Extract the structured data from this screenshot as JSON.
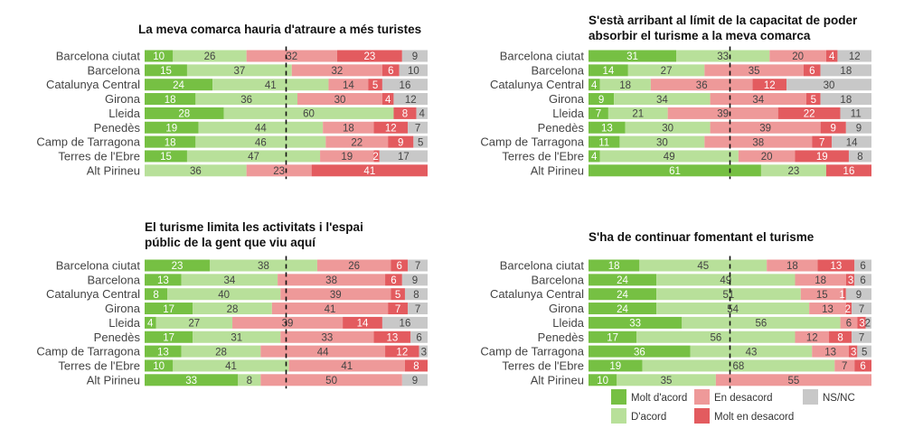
{
  "colors": {
    "molt_acord": "#76c043",
    "acord": "#b8e09a",
    "desacord": "#ee9999",
    "molt_desacord": "#e35b5f",
    "nsnc": "#c8c8c8"
  },
  "legend": {
    "molt_acord": "Molt d'acord",
    "acord": "D'acord",
    "desacord": "En desacord",
    "molt_desacord": "Molt en desacord",
    "nsnc": "NS/NC"
  },
  "chart_data": [
    {
      "type": "stacked-bar",
      "title_lines": [
        "La meva comarca hauria d'atraure a més turistes"
      ],
      "categories": [
        "Barcelona ciutat",
        "Barcelona",
        "Catalunya Central",
        "Girona",
        "Lleida",
        "Penedès",
        "Camp de Tarragona",
        "Terres de l'Ebre",
        "Alt Pirineu"
      ],
      "series": [
        {
          "key": "molt_acord",
          "values": [
            10,
            15,
            24,
            18,
            28,
            19,
            18,
            15,
            0
          ]
        },
        {
          "key": "acord",
          "values": [
            26,
            37,
            41,
            36,
            60,
            44,
            46,
            47,
            36
          ]
        },
        {
          "key": "desacord",
          "values": [
            32,
            32,
            14,
            30,
            0,
            18,
            22,
            19,
            23
          ]
        },
        {
          "key": "molt_desacord",
          "values": [
            23,
            6,
            5,
            4,
            8,
            12,
            9,
            2,
            41
          ]
        },
        {
          "key": "nsnc",
          "values": [
            9,
            10,
            16,
            12,
            4,
            7,
            5,
            17,
            0
          ]
        }
      ],
      "xlim": [
        0,
        100
      ],
      "reference_line": 50
    },
    {
      "type": "stacked-bar",
      "title_lines": [
        "S'està arribant al límit de la capacitat de poder",
        "absorbir el turisme a la meva comarca"
      ],
      "categories": [
        "Barcelona ciutat",
        "Barcelona",
        "Catalunya Central",
        "Girona",
        "Lleida",
        "Penedès",
        "Camp de Tarragona",
        "Terres de l'Ebre",
        "Alt Pirineu"
      ],
      "series": [
        {
          "key": "molt_acord",
          "values": [
            31,
            14,
            4,
            9,
            7,
            13,
            11,
            4,
            61
          ]
        },
        {
          "key": "acord",
          "values": [
            33,
            27,
            18,
            34,
            21,
            30,
            30,
            49,
            23
          ]
        },
        {
          "key": "desacord",
          "values": [
            20,
            35,
            36,
            34,
            39,
            39,
            38,
            20,
            0
          ]
        },
        {
          "key": "molt_desacord",
          "values": [
            4,
            6,
            12,
            5,
            22,
            9,
            7,
            19,
            16
          ]
        },
        {
          "key": "nsnc",
          "values": [
            12,
            18,
            30,
            18,
            11,
            9,
            14,
            8,
            0
          ]
        }
      ],
      "xlim": [
        0,
        100
      ],
      "reference_line": 50
    },
    {
      "type": "stacked-bar",
      "title_lines": [
        "El turisme limita les activitats i l'espai",
        "públic de la gent que viu aquí"
      ],
      "categories": [
        "Barcelona ciutat",
        "Barcelona",
        "Catalunya Central",
        "Girona",
        "Lleida",
        "Penedès",
        "Camp de Tarragona",
        "Terres de l'Ebre",
        "Alt Pirineu"
      ],
      "series": [
        {
          "key": "molt_acord",
          "values": [
            23,
            13,
            8,
            17,
            4,
            17,
            13,
            10,
            33
          ]
        },
        {
          "key": "acord",
          "values": [
            38,
            34,
            40,
            28,
            27,
            31,
            28,
            41,
            8
          ]
        },
        {
          "key": "desacord",
          "values": [
            26,
            38,
            39,
            41,
            39,
            33,
            44,
            41,
            50
          ]
        },
        {
          "key": "molt_desacord",
          "values": [
            6,
            6,
            5,
            7,
            14,
            13,
            12,
            8,
            0
          ]
        },
        {
          "key": "nsnc",
          "values": [
            7,
            9,
            8,
            7,
            16,
            6,
            3,
            0,
            9
          ]
        }
      ],
      "xlim": [
        0,
        100
      ],
      "reference_line": 50
    },
    {
      "type": "stacked-bar",
      "title_lines": [
        "S'ha de continuar fomentant el turisme"
      ],
      "categories": [
        "Barcelona ciutat",
        "Barcelona",
        "Catalunya Central",
        "Girona",
        "Lleida",
        "Penedès",
        "Camp de Tarragona",
        "Terres de l'Ebre",
        "Alt Pirineu"
      ],
      "series": [
        {
          "key": "molt_acord",
          "values": [
            18,
            24,
            24,
            24,
            33,
            17,
            36,
            19,
            10
          ]
        },
        {
          "key": "acord",
          "values": [
            45,
            49,
            51,
            54,
            56,
            56,
            43,
            68,
            35
          ]
        },
        {
          "key": "desacord",
          "values": [
            18,
            18,
            15,
            13,
            6,
            12,
            13,
            7,
            55
          ]
        },
        {
          "key": "molt_desacord",
          "values": [
            13,
            3,
            1,
            2,
            3,
            8,
            3,
            6,
            0
          ]
        },
        {
          "key": "nsnc",
          "values": [
            6,
            6,
            9,
            7,
            2,
            7,
            5,
            0,
            0
          ]
        }
      ],
      "xlim": [
        0,
        100
      ],
      "reference_line": 50
    }
  ]
}
